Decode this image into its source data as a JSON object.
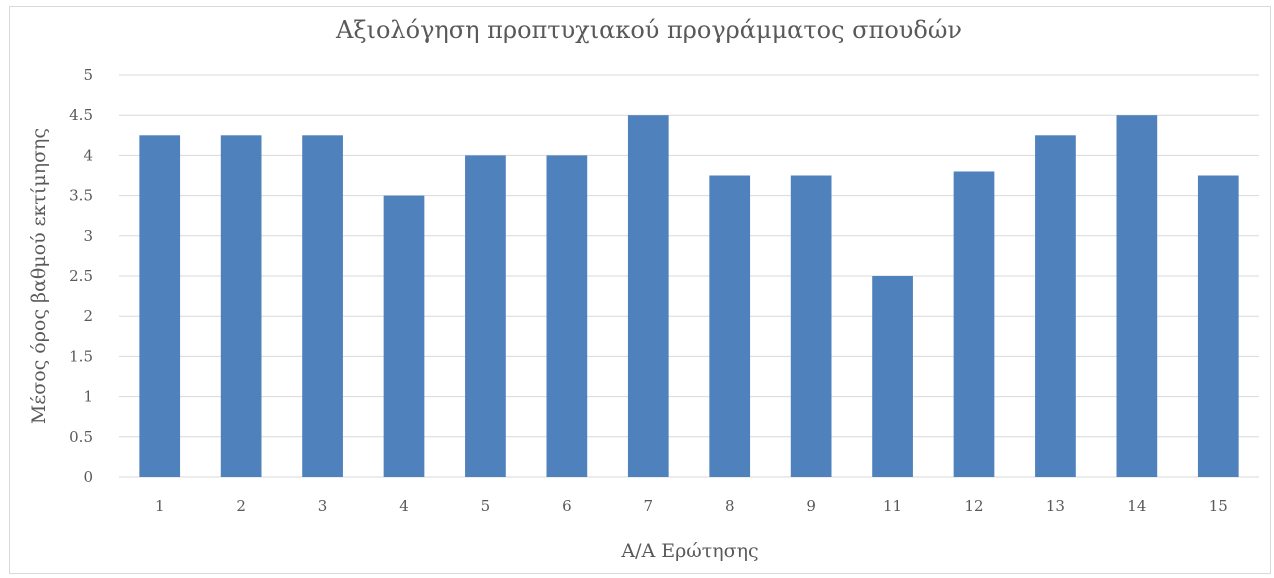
{
  "chart_data": {
    "type": "bar",
    "title": "Αξιολόγηση προπτυχιακού προγράμματος σπουδών",
    "xlabel": "Α/Α Ερώτησης",
    "ylabel": "Μέσος όρος βαθμού εκτίμησης",
    "categories": [
      "1",
      "2",
      "3",
      "4",
      "5",
      "6",
      "7",
      "8",
      "9",
      "11",
      "12",
      "13",
      "14",
      "15"
    ],
    "values": [
      4.25,
      4.25,
      4.25,
      3.5,
      4.0,
      4.0,
      4.5,
      3.75,
      3.75,
      2.5,
      3.8,
      4.25,
      4.5,
      3.75
    ],
    "ylim": [
      0,
      5
    ],
    "yticks": [
      "0",
      "0.5",
      "1",
      "1.5",
      "2",
      "2.5",
      "3",
      "3.5",
      "4",
      "4.5",
      "5"
    ],
    "grid": true,
    "legend": "none",
    "bar_color": "#4f81bd"
  }
}
